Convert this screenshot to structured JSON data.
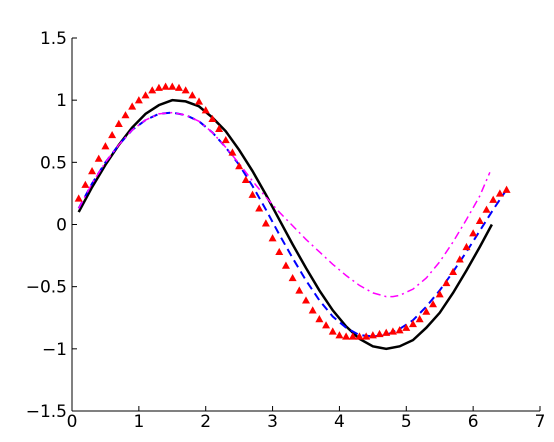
{
  "chart_data": {
    "type": "line",
    "title": "",
    "xlabel": "",
    "ylabel": "",
    "xlim": [
      0,
      7
    ],
    "ylim": [
      -1.5,
      1.5
    ],
    "x_ticks": [
      0,
      1,
      2,
      3,
      4,
      5,
      6,
      7
    ],
    "x_tick_labels": [
      "0",
      "1",
      "2",
      "3",
      "4",
      "5",
      "6",
      "7"
    ],
    "y_ticks": [
      -1.5,
      -1,
      -0.5,
      0,
      0.5,
      1,
      1.5
    ],
    "y_tick_labels": [
      "−1.5",
      "−1",
      "−0.5",
      "0",
      "0.5",
      "1",
      "1.5"
    ],
    "grid": false,
    "legend": "none",
    "series": [
      {
        "style": "solid",
        "color": "#000000",
        "x": [
          0.1,
          0.3,
          0.5,
          0.7,
          0.9,
          1.1,
          1.3,
          1.5,
          1.7,
          1.9,
          2.1,
          2.3,
          2.5,
          2.7,
          2.9,
          3.1,
          3.3,
          3.5,
          3.7,
          3.9,
          4.1,
          4.3,
          4.5,
          4.7,
          4.9,
          5.1,
          5.3,
          5.5,
          5.7,
          5.9,
          6.1,
          6.28
        ],
        "y": [
          0.1,
          0.3,
          0.48,
          0.64,
          0.78,
          0.89,
          0.96,
          1.0,
          0.99,
          0.95,
          0.86,
          0.75,
          0.6,
          0.43,
          0.24,
          0.04,
          -0.16,
          -0.35,
          -0.53,
          -0.69,
          -0.82,
          -0.92,
          -0.98,
          -1.0,
          -0.98,
          -0.93,
          -0.83,
          -0.71,
          -0.55,
          -0.37,
          -0.18,
          0.0
        ]
      },
      {
        "style": "dashed",
        "color": "#0000ff",
        "x": [
          0.1,
          0.3,
          0.5,
          0.7,
          0.9,
          1.1,
          1.3,
          1.5,
          1.7,
          1.9,
          2.1,
          2.3,
          2.5,
          2.7,
          2.9,
          3.1,
          3.3,
          3.5,
          3.7,
          3.9,
          4.1,
          4.3,
          4.5,
          4.7,
          4.9,
          5.1,
          5.3,
          5.5,
          5.7,
          5.9,
          6.1,
          6.3,
          6.5
        ],
        "y": [
          0.13,
          0.33,
          0.5,
          0.64,
          0.76,
          0.84,
          0.89,
          0.9,
          0.88,
          0.83,
          0.74,
          0.62,
          0.48,
          0.31,
          0.12,
          -0.08,
          -0.27,
          -0.45,
          -0.61,
          -0.74,
          -0.83,
          -0.89,
          -0.9,
          -0.89,
          -0.84,
          -0.77,
          -0.66,
          -0.53,
          -0.38,
          -0.22,
          -0.05,
          0.12,
          0.28
        ]
      },
      {
        "style": "dashdot",
        "color": "#ff00ff",
        "x": [
          0.1,
          0.3,
          0.5,
          0.7,
          0.9,
          1.1,
          1.3,
          1.5,
          1.7,
          1.9,
          2.1,
          2.3,
          2.5,
          2.7,
          2.9,
          3.1,
          3.3,
          3.5,
          3.7,
          3.9,
          4.1,
          4.3,
          4.5,
          4.7,
          4.8,
          4.9,
          5.1,
          5.3,
          5.5,
          5.7,
          5.9,
          6.1,
          6.25
        ],
        "y": [
          0.13,
          0.33,
          0.5,
          0.64,
          0.76,
          0.84,
          0.89,
          0.9,
          0.88,
          0.83,
          0.74,
          0.62,
          0.49,
          0.35,
          0.22,
          0.1,
          -0.01,
          -0.12,
          -0.22,
          -0.32,
          -0.41,
          -0.49,
          -0.55,
          -0.58,
          -0.58,
          -0.57,
          -0.52,
          -0.43,
          -0.3,
          -0.14,
          0.04,
          0.23,
          0.42
        ]
      },
      {
        "style": "markers",
        "marker": "triangle",
        "color": "#ff0000",
        "x": [
          0.1,
          0.2,
          0.3,
          0.4,
          0.5,
          0.6,
          0.7,
          0.8,
          0.9,
          1.0,
          1.1,
          1.2,
          1.3,
          1.4,
          1.5,
          1.6,
          1.7,
          1.8,
          1.9,
          2.0,
          2.1,
          2.2,
          2.3,
          2.4,
          2.5,
          2.6,
          2.7,
          2.8,
          2.9,
          3.0,
          3.1,
          3.2,
          3.3,
          3.4,
          3.5,
          3.6,
          3.7,
          3.8,
          3.9,
          4.0,
          4.1,
          4.2,
          4.3,
          4.4,
          4.5,
          4.6,
          4.7,
          4.8,
          4.9,
          5.0,
          5.1,
          5.2,
          5.3,
          5.4,
          5.5,
          5.6,
          5.7,
          5.8,
          5.9,
          6.0,
          6.1,
          6.2,
          6.3,
          6.4,
          6.5
        ],
        "y": [
          0.21,
          0.32,
          0.43,
          0.53,
          0.63,
          0.72,
          0.81,
          0.88,
          0.95,
          1.0,
          1.04,
          1.08,
          1.1,
          1.11,
          1.11,
          1.1,
          1.08,
          1.04,
          0.99,
          0.92,
          0.85,
          0.77,
          0.68,
          0.58,
          0.47,
          0.36,
          0.24,
          0.13,
          0.01,
          -0.11,
          -0.22,
          -0.33,
          -0.43,
          -0.53,
          -0.61,
          -0.69,
          -0.76,
          -0.81,
          -0.86,
          -0.89,
          -0.9,
          -0.9,
          -0.9,
          -0.9,
          -0.89,
          -0.88,
          -0.87,
          -0.86,
          -0.85,
          -0.83,
          -0.8,
          -0.76,
          -0.7,
          -0.64,
          -0.56,
          -0.47,
          -0.38,
          -0.28,
          -0.18,
          -0.07,
          0.03,
          0.12,
          0.2,
          0.25,
          0.28
        ]
      }
    ]
  }
}
